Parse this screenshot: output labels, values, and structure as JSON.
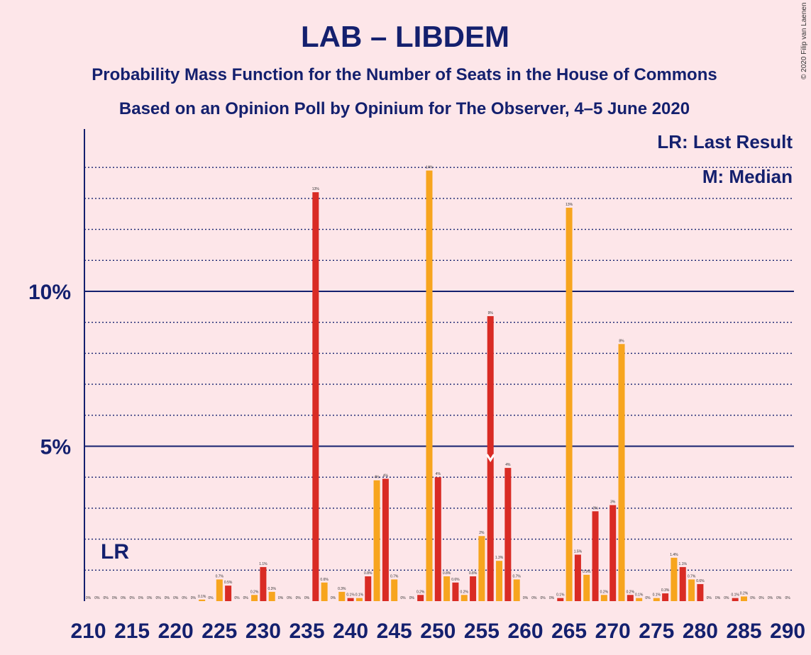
{
  "chart_data": {
    "type": "bar",
    "title": "LAB – LIBDEM",
    "subtitle": "Probability Mass Function for the Number of Seats in the House of Commons",
    "subtitle2": "Based on an Opinion Poll by Opinium for The Observer, 4–5 June 2020",
    "copyright": "© 2020 Filip van Laenen",
    "legend": {
      "lr": "LR: Last Result",
      "median": "M: Median"
    },
    "lr_label": "LR",
    "lr_seat": 213,
    "median_seat": 256,
    "median_marker": "M",
    "x_range": [
      210,
      290
    ],
    "x_tick_labels": [
      "210",
      "215",
      "220",
      "225",
      "230",
      "235",
      "240",
      "245",
      "250",
      "255",
      "260",
      "265",
      "270",
      "275",
      "280",
      "285",
      "290"
    ],
    "y_ticks": [
      {
        "value": 5,
        "label": "5%"
      },
      {
        "value": 10,
        "label": "10%"
      }
    ],
    "ylim": [
      0,
      15
    ],
    "grid": "dotted every 1%, solid at 5% and 10%",
    "colors": {
      "red": "#d92b24",
      "orange": "#f7a51e",
      "axis": "#14206e",
      "background": "#fde6e9"
    },
    "bars": [
      {
        "seat": 210,
        "value": 0,
        "label": "0%",
        "color": "red"
      },
      {
        "seat": 211,
        "value": 0,
        "label": "0%",
        "color": "orange"
      },
      {
        "seat": 212,
        "value": 0,
        "label": "0%",
        "color": "red"
      },
      {
        "seat": 213,
        "value": 0,
        "label": "0%",
        "color": "orange"
      },
      {
        "seat": 214,
        "value": 0,
        "label": "0%",
        "color": "red"
      },
      {
        "seat": 215,
        "value": 0,
        "label": "0%",
        "color": "orange"
      },
      {
        "seat": 216,
        "value": 0,
        "label": "0%",
        "color": "red"
      },
      {
        "seat": 217,
        "value": 0,
        "label": "0%",
        "color": "orange"
      },
      {
        "seat": 218,
        "value": 0,
        "label": "0%",
        "color": "red"
      },
      {
        "seat": 219,
        "value": 0,
        "label": "0%",
        "color": "orange"
      },
      {
        "seat": 220,
        "value": 0,
        "label": "0%",
        "color": "red"
      },
      {
        "seat": 221,
        "value": 0,
        "label": "0%",
        "color": "orange"
      },
      {
        "seat": 222,
        "value": 0,
        "label": "0%",
        "color": "red"
      },
      {
        "seat": 223,
        "value": 0.05,
        "label": "0.1%",
        "color": "orange"
      },
      {
        "seat": 224,
        "value": 0,
        "label": "0%",
        "color": "red"
      },
      {
        "seat": 225,
        "value": 0.7,
        "label": "0.7%",
        "color": "orange"
      },
      {
        "seat": 226,
        "value": 0.5,
        "label": "0.5%",
        "color": "red"
      },
      {
        "seat": 227,
        "value": 0,
        "label": "0%",
        "color": "orange"
      },
      {
        "seat": 228,
        "value": 0,
        "label": "0%",
        "color": "red"
      },
      {
        "seat": 229,
        "value": 0.2,
        "label": "0.2%",
        "color": "orange"
      },
      {
        "seat": 230,
        "value": 1.1,
        "label": "1.1%",
        "color": "red"
      },
      {
        "seat": 231,
        "value": 0.3,
        "label": "0.3%",
        "color": "orange"
      },
      {
        "seat": 232,
        "value": 0,
        "label": "0%",
        "color": "red"
      },
      {
        "seat": 233,
        "value": 0,
        "label": "0%",
        "color": "orange"
      },
      {
        "seat": 234,
        "value": 0,
        "label": "0%",
        "color": "red"
      },
      {
        "seat": 235,
        "value": 0,
        "label": "0%",
        "color": "orange"
      },
      {
        "seat": 236,
        "value": 13.2,
        "label": "13%",
        "color": "red"
      },
      {
        "seat": 237,
        "value": 0.6,
        "label": "0.6%",
        "color": "orange"
      },
      {
        "seat": 238,
        "value": 0,
        "label": "0%",
        "color": "red"
      },
      {
        "seat": 239,
        "value": 0.3,
        "label": "0.3%",
        "color": "orange"
      },
      {
        "seat": 240,
        "value": 0.1,
        "label": "0.1%",
        "color": "red"
      },
      {
        "seat": 241,
        "value": 0.1,
        "label": "0.1%",
        "color": "orange"
      },
      {
        "seat": 242,
        "value": 0.8,
        "label": "0.8%",
        "color": "red"
      },
      {
        "seat": 243,
        "value": 3.9,
        "label": "4%",
        "color": "orange"
      },
      {
        "seat": 244,
        "value": 3.95,
        "label": "4%",
        "color": "red"
      },
      {
        "seat": 245,
        "value": 0.7,
        "label": "0.7%",
        "color": "orange"
      },
      {
        "seat": 246,
        "value": 0,
        "label": "0%",
        "color": "red"
      },
      {
        "seat": 247,
        "value": 0,
        "label": "0%",
        "color": "orange"
      },
      {
        "seat": 248,
        "value": 0.2,
        "label": "0.2%",
        "color": "red"
      },
      {
        "seat": 249,
        "value": 13.9,
        "label": "14%",
        "color": "orange"
      },
      {
        "seat": 250,
        "value": 4.0,
        "label": "4%",
        "color": "red"
      },
      {
        "seat": 251,
        "value": 0.8,
        "label": "0.8%",
        "color": "orange"
      },
      {
        "seat": 252,
        "value": 0.6,
        "label": "0.6%",
        "color": "red"
      },
      {
        "seat": 253,
        "value": 0.2,
        "label": "0.2%",
        "color": "orange"
      },
      {
        "seat": 254,
        "value": 0.8,
        "label": "0.8%",
        "color": "red"
      },
      {
        "seat": 255,
        "value": 2.1,
        "label": "2%",
        "color": "orange"
      },
      {
        "seat": 256,
        "value": 9.2,
        "label": "9%",
        "color": "red"
      },
      {
        "seat": 257,
        "value": 1.3,
        "label": "1.3%",
        "color": "orange"
      },
      {
        "seat": 258,
        "value": 4.3,
        "label": "4%",
        "color": "red"
      },
      {
        "seat": 259,
        "value": 0.7,
        "label": "0.7%",
        "color": "orange"
      },
      {
        "seat": 260,
        "value": 0,
        "label": "0%",
        "color": "red"
      },
      {
        "seat": 261,
        "value": 0,
        "label": "0%",
        "color": "orange"
      },
      {
        "seat": 262,
        "value": 0,
        "label": "0%",
        "color": "red"
      },
      {
        "seat": 263,
        "value": 0,
        "label": "0%",
        "color": "orange"
      },
      {
        "seat": 264,
        "value": 0.1,
        "label": "0.1%",
        "color": "red"
      },
      {
        "seat": 265,
        "value": 12.7,
        "label": "13%",
        "color": "orange"
      },
      {
        "seat": 266,
        "value": 1.5,
        "label": "1.5%",
        "color": "red"
      },
      {
        "seat": 267,
        "value": 0.85,
        "label": "0.9%",
        "color": "orange"
      },
      {
        "seat": 268,
        "value": 2.9,
        "label": "3%",
        "color": "red"
      },
      {
        "seat": 269,
        "value": 0.2,
        "label": "0.2%",
        "color": "orange"
      },
      {
        "seat": 270,
        "value": 3.1,
        "label": "3%",
        "color": "red"
      },
      {
        "seat": 271,
        "value": 8.3,
        "label": "8%",
        "color": "orange"
      },
      {
        "seat": 272,
        "value": 0.2,
        "label": "0.2%",
        "color": "red"
      },
      {
        "seat": 273,
        "value": 0.1,
        "label": "0.1%",
        "color": "orange"
      },
      {
        "seat": 274,
        "value": 0,
        "label": "0%",
        "color": "red"
      },
      {
        "seat": 275,
        "value": 0.1,
        "label": "0.1%",
        "color": "orange"
      },
      {
        "seat": 276,
        "value": 0.25,
        "label": "0.3%",
        "color": "red"
      },
      {
        "seat": 277,
        "value": 1.4,
        "label": "1.4%",
        "color": "orange"
      },
      {
        "seat": 278,
        "value": 1.1,
        "label": "1.1%",
        "color": "red"
      },
      {
        "seat": 279,
        "value": 0.7,
        "label": "0.7%",
        "color": "orange"
      },
      {
        "seat": 280,
        "value": 0.55,
        "label": "0.6%",
        "color": "red"
      },
      {
        "seat": 281,
        "value": 0,
        "label": "0%",
        "color": "orange"
      },
      {
        "seat": 282,
        "value": 0,
        "label": "0%",
        "color": "red"
      },
      {
        "seat": 283,
        "value": 0,
        "label": "0%",
        "color": "orange"
      },
      {
        "seat": 284,
        "value": 0.1,
        "label": "0.1%",
        "color": "red"
      },
      {
        "seat": 285,
        "value": 0.15,
        "label": "0.2%",
        "color": "orange"
      },
      {
        "seat": 286,
        "value": 0,
        "label": "0%",
        "color": "red"
      },
      {
        "seat": 287,
        "value": 0,
        "label": "0%",
        "color": "orange"
      },
      {
        "seat": 288,
        "value": 0,
        "label": "0%",
        "color": "red"
      },
      {
        "seat": 289,
        "value": 0,
        "label": "0%",
        "color": "orange"
      },
      {
        "seat": 290,
        "value": 0,
        "label": "0%",
        "color": "red"
      }
    ]
  }
}
